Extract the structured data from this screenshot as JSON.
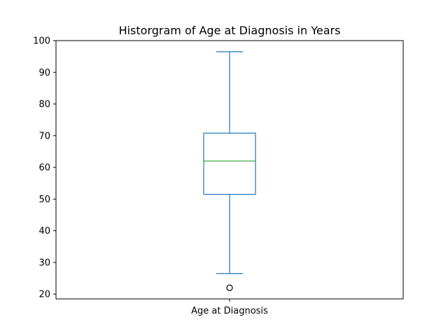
{
  "chart_data": {
    "type": "boxplot",
    "title": "Historgram of Age at Diagnosis in Years",
    "xlabel": "",
    "ylabel": "",
    "categories": [
      "Age at Diagnosis"
    ],
    "ylim": [
      18.5,
      100
    ],
    "yticks": [
      20,
      30,
      40,
      50,
      60,
      70,
      80,
      90,
      100
    ],
    "grid": false,
    "series": [
      {
        "name": "Age at Diagnosis",
        "whisker_low": 26.5,
        "q1": 51.5,
        "median": 62,
        "q3": 70.8,
        "whisker_high": 96.5,
        "outliers": [
          22
        ]
      }
    ],
    "colors": {
      "box": "#1f77b4",
      "whisker": "#1f77b4",
      "median": "#2ca02c",
      "outlier_edge": "#000000",
      "axes": "#000000"
    }
  }
}
